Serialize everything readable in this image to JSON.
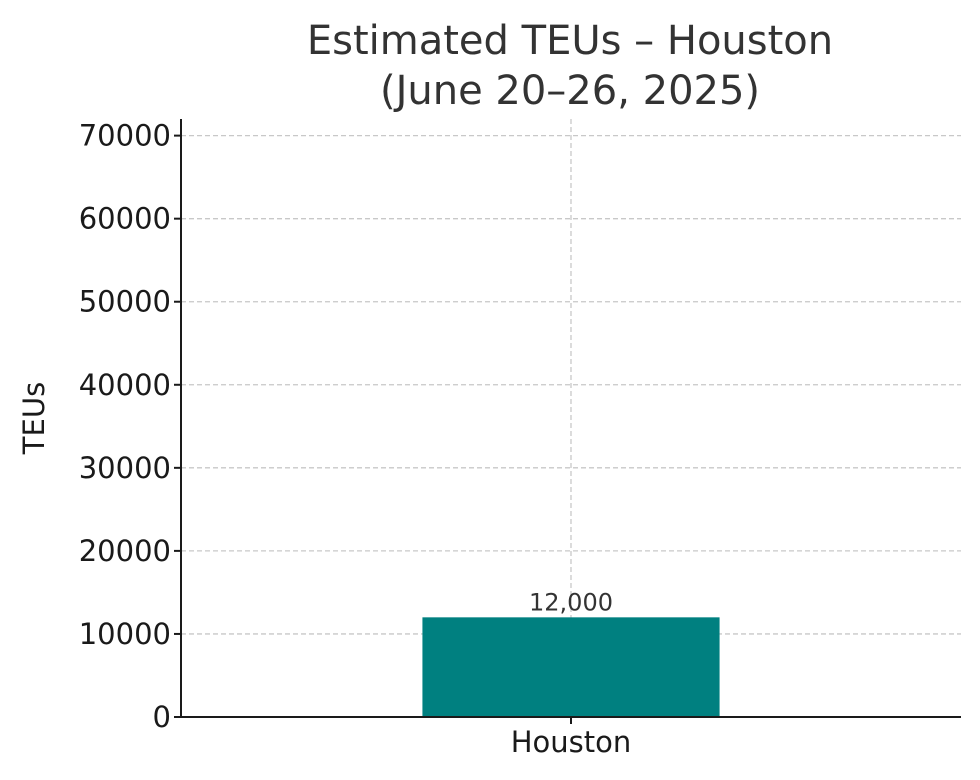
{
  "chart_data": {
    "type": "bar",
    "title_lines": [
      "Estimated TEUs – Houston",
      "(June 20–26, 2025)"
    ],
    "xlabel": "",
    "ylabel": "TEUs",
    "categories": [
      "Houston"
    ],
    "values": [
      12000
    ],
    "value_labels": [
      "12,000"
    ],
    "ylim": [
      0,
      72000
    ],
    "yticks": [
      0,
      10000,
      20000,
      30000,
      40000,
      50000,
      60000,
      70000
    ],
    "ytick_labels": [
      "0",
      "10000",
      "20000",
      "30000",
      "40000",
      "50000",
      "60000",
      "70000"
    ],
    "grid": true,
    "bar_color": "#008080"
  }
}
